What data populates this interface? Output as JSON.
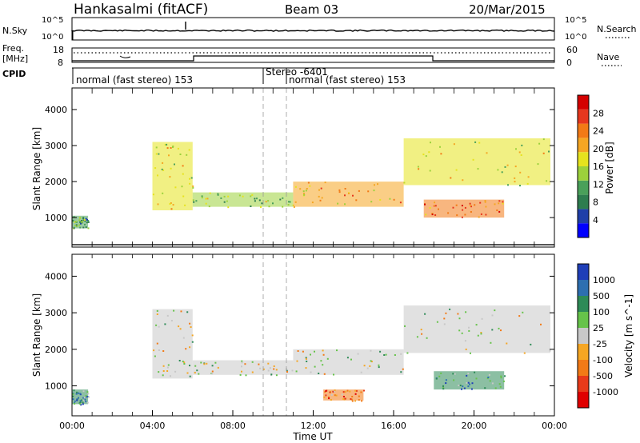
{
  "header": {
    "station": "Hankasalmi (fitACF)",
    "beam": "Beam 03",
    "date": "20/Mar/2015"
  },
  "status_panels": {
    "nsky_label": "N.Sky",
    "nsearch_label": "N.Search",
    "noise_top_left": "10^5",
    "noise_bottom_left": "10^0",
    "noise_top_right": "10^5",
    "noise_bottom_right": "10^0",
    "freq_label": "Freq.",
    "freq_unit": "[MHz]",
    "freq_ticks": [
      "18",
      "8"
    ],
    "nave_ticks": [
      "60",
      "0"
    ],
    "nave_label": "Nave",
    "cpid_label": "CPID",
    "modes": [
      {
        "label": "normal (fast stereo) 153"
      },
      {
        "label": "Stereo -6401"
      },
      {
        "label": "normal (fast stereo) 153"
      }
    ]
  },
  "chart_data": [
    {
      "type": "heatmap",
      "panel": "power",
      "ylabel": "Slant Range [km]",
      "ylim": [
        180,
        4600
      ],
      "yticks": [
        "1000",
        "2000",
        "3000",
        "4000"
      ],
      "xlabel": "",
      "colorbar": {
        "label": "Power [dB]",
        "range": [
          0,
          32
        ],
        "ticks": [
          "4",
          "8",
          "12",
          "16",
          "20",
          "24",
          "28"
        ],
        "colors": [
          "#0000ff",
          "#1f3fa8",
          "#2e7d4f",
          "#4aa05a",
          "#9cd13c",
          "#e6e31e",
          "#f5a623",
          "#f27a16",
          "#e6371e",
          "#d40000"
        ]
      },
      "echo_bands": [
        {
          "t_start": 0.0,
          "t_end": 0.8,
          "range_low": 700,
          "range_high": 1050,
          "power": 10
        },
        {
          "t_start": 4.0,
          "t_end": 6.0,
          "range_low": 1200,
          "range_high": 3100,
          "power": 16
        },
        {
          "t_start": 6.0,
          "t_end": 11.0,
          "range_low": 1300,
          "range_high": 1700,
          "power": 14
        },
        {
          "t_start": 11.0,
          "t_end": 16.5,
          "range_low": 1300,
          "range_high": 2000,
          "power": 20
        },
        {
          "t_start": 16.5,
          "t_end": 23.8,
          "range_low": 1900,
          "range_high": 3200,
          "power": 16
        },
        {
          "t_start": 17.5,
          "t_end": 21.5,
          "range_low": 1000,
          "range_high": 1500,
          "power": 24
        }
      ]
    },
    {
      "type": "heatmap",
      "panel": "velocity",
      "ylabel": "Slant Range [km]",
      "ylim": [
        180,
        4600
      ],
      "yticks": [
        "1000",
        "2000",
        "3000",
        "4000"
      ],
      "xlabel": "Time UT",
      "xticks": [
        "00:00",
        "04:00",
        "08:00",
        "12:00",
        "16:00",
        "20:00",
        "00:00"
      ],
      "xlim": [
        0,
        24
      ],
      "colorbar": {
        "label": "Velocity [m s^-1]",
        "ticks": [
          "1000",
          "500",
          "100",
          "25",
          "-25",
          "-100",
          "-500",
          "-1000"
        ],
        "colors": [
          "#1f3fb8",
          "#2d6fb0",
          "#2e8b57",
          "#66c34a",
          "#c8c8c8",
          "#f5a623",
          "#f27a16",
          "#e83a1a",
          "#e00000"
        ]
      },
      "echo_bands": [
        {
          "t_start": 0.0,
          "t_end": 0.8,
          "range_low": 500,
          "range_high": 900,
          "velocity": 100
        },
        {
          "t_start": 4.0,
          "t_end": 6.0,
          "range_low": 1200,
          "range_high": 3100,
          "velocity": 0
        },
        {
          "t_start": 6.0,
          "t_end": 11.0,
          "range_low": 1300,
          "range_high": 1700,
          "velocity": 0
        },
        {
          "t_start": 11.0,
          "t_end": 16.5,
          "range_low": 1300,
          "range_high": 2000,
          "velocity": 0
        },
        {
          "t_start": 16.5,
          "t_end": 23.8,
          "range_low": 1900,
          "range_high": 3200,
          "velocity": 0
        },
        {
          "t_start": 12.5,
          "t_end": 14.5,
          "range_low": 600,
          "range_high": 900,
          "velocity": -100
        },
        {
          "t_start": 18.0,
          "t_end": 21.5,
          "range_low": 900,
          "range_high": 1400,
          "velocity": 300
        }
      ]
    }
  ]
}
